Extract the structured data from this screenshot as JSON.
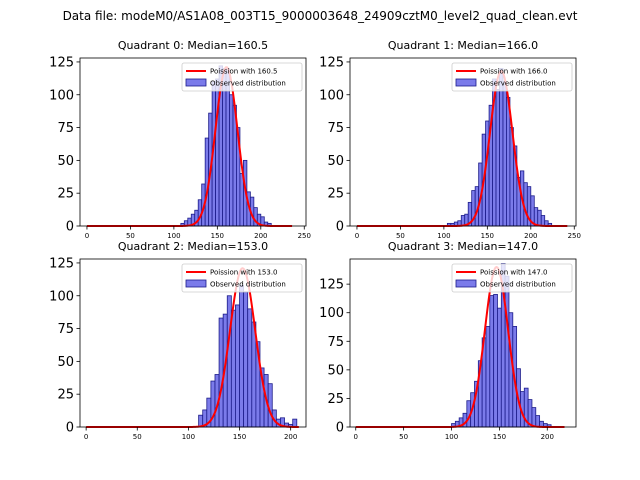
{
  "chart_data": {
    "type": "bar",
    "title": "Data file: modeM0/AS1A08_003T15_9000003648_24909cztM0_level2_quad_clean.evt",
    "colors": {
      "bar_fill": "#7b7bea",
      "bar_edge": "#1c1c8a",
      "line": "#ff0000",
      "axis": "#000000"
    },
    "panels": [
      {
        "title": "Quadrant 0: Median=160.5",
        "legend": {
          "line_label": "Poission with 160.5",
          "bar_label": "Observed distribution",
          "placement": "top-right"
        },
        "xlim": [
          -8,
          252
        ],
        "ylim": [
          0,
          128
        ],
        "xticks": [
          0,
          50,
          100,
          150,
          200,
          250
        ],
        "yticks": [
          0,
          25,
          50,
          75,
          100,
          125
        ],
        "mean": 160.5,
        "bin_start": 108,
        "bin_width": 4,
        "values": [
          2,
          4,
          6,
          9,
          12,
          20,
          32,
          67,
          86,
          110,
          112,
          122,
          120,
          120,
          100,
          92,
          75,
          40,
          50,
          26,
          22,
          14,
          9,
          7,
          3,
          2
        ],
        "curve_peak": 121,
        "curve_xmin": 0,
        "curve_xmax": 236
      },
      {
        "title": "Quadrant 1: Median=166.0",
        "legend": {
          "line_label": "Poission with 166.0",
          "bar_label": "Observed distribution",
          "placement": "top-right"
        },
        "xlim": [
          -8,
          252
        ],
        "ylim": [
          0,
          128
        ],
        "xticks": [
          0,
          50,
          100,
          150,
          200,
          250
        ],
        "yticks": [
          0,
          25,
          50,
          75,
          100,
          125
        ],
        "mean": 166.0,
        "bin_start": 104,
        "bin_width": 4,
        "values": [
          2,
          2,
          3,
          4,
          8,
          9,
          18,
          27,
          30,
          48,
          70,
          80,
          92,
          112,
          104,
          120,
          110,
          98,
          75,
          61,
          37,
          42,
          33,
          30,
          23,
          14,
          12,
          8,
          4,
          2
        ],
        "curve_peak": 118,
        "curve_xmin": 0,
        "curve_xmax": 242
      },
      {
        "title": "Quadrant 2: Median=153.0",
        "legend": {
          "line_label": "Poission with 153.0",
          "bar_label": "Observed distribution",
          "placement": "top-right"
        },
        "xlim": [
          -6,
          215
        ],
        "ylim": [
          0,
          128
        ],
        "xticks": [
          0,
          50,
          100,
          150,
          200
        ],
        "yticks": [
          0,
          25,
          50,
          75,
          100,
          125
        ],
        "mean": 153.0,
        "bin_start": 110,
        "bin_width": 4,
        "values": [
          9,
          13,
          22,
          35,
          40,
          83,
          86,
          100,
          89,
          93,
          108,
          103,
          90,
          80,
          65,
          45,
          40,
          33,
          13,
          6,
          7,
          3,
          2,
          6
        ],
        "curve_peak": 121,
        "curve_xmin": 0,
        "curve_xmax": 208
      },
      {
        "title": "Quadrant 3: Median=147.0",
        "legend": {
          "line_label": "Poission with 147.0",
          "bar_label": "Observed distribution",
          "placement": "top-right"
        },
        "xlim": [
          -6,
          230
        ],
        "ylim": [
          0,
          147
        ],
        "xticks": [
          0,
          50,
          100,
          150,
          200
        ],
        "yticks": [
          0,
          25,
          50,
          75,
          100,
          125
        ],
        "mean": 147.0,
        "bin_start": 100,
        "bin_width": 4,
        "values": [
          3,
          5,
          8,
          12,
          23,
          30,
          40,
          58,
          78,
          88,
          115,
          116,
          104,
          143,
          132,
          100,
          88,
          51,
          31,
          34,
          24,
          17,
          10,
          5,
          3,
          2
        ],
        "curve_peak": 140,
        "curve_xmin": 0,
        "curve_xmax": 218
      }
    ]
  }
}
